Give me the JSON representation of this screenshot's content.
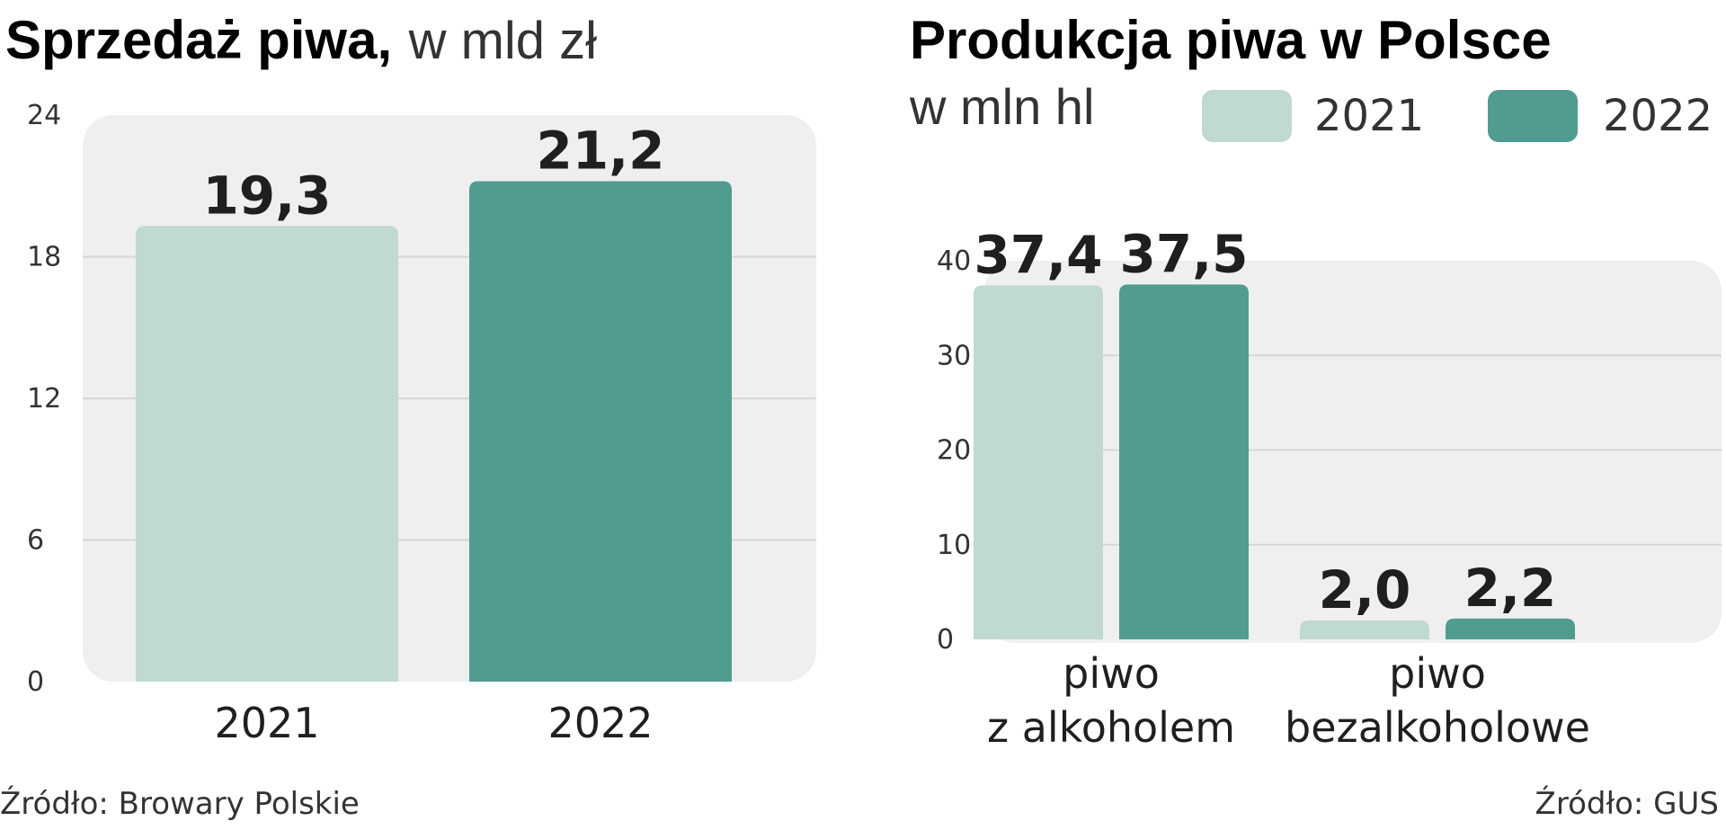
{
  "chart_data": [
    {
      "type": "bar",
      "title": "Sprzedaż piwa,",
      "subtitle": "w mld zł",
      "categories": [
        "2021",
        "2022"
      ],
      "values": [
        19.3,
        21.2
      ],
      "value_labels": [
        "19,3",
        "21,2"
      ],
      "yticks": [
        "0",
        "6",
        "12",
        "18",
        "24"
      ],
      "ylim": [
        0,
        24
      ],
      "grid": true,
      "colors": [
        "#c0d9d3",
        "#519c90"
      ],
      "source": "Źródło: Browary Polskie"
    },
    {
      "type": "bar",
      "title": "Produkcja piwa w Polsce",
      "subtitle": "w mln hl",
      "categories": [
        [
          "piwo",
          "z alkoholem"
        ],
        [
          "piwo",
          "bezalkoholowe"
        ]
      ],
      "series": [
        {
          "name": "2021",
          "values": [
            37.4,
            2.0
          ],
          "value_labels": [
            "37,4",
            "2,0"
          ],
          "color": "#c0d9d3"
        },
        {
          "name": "2022",
          "values": [
            37.5,
            2.2
          ],
          "value_labels": [
            "37,5",
            "2,2"
          ],
          "color": "#519c90"
        }
      ],
      "yticks": [
        "0",
        "10",
        "20",
        "30",
        "40"
      ],
      "ylim": [
        0,
        40
      ],
      "grid": true,
      "legend_position": "top-right",
      "source": "Źródło: GUS"
    }
  ]
}
